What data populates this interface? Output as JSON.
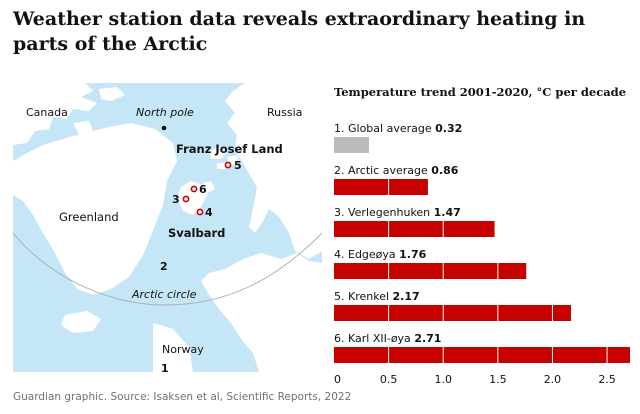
{
  "headline": "Weather station data reveals extraordinary heating in parts of the Arctic",
  "map": {
    "labels": {
      "canada": "Canada",
      "north_pole": "North pole",
      "russia": "Russia",
      "franz_josef_land": "Franz Josef Land",
      "greenland": "Greenland",
      "svalbard": "Svalbard",
      "arctic_circle": "Arctic circle",
      "norway": "Norway"
    },
    "stations": {
      "s1": "1",
      "s2": "2",
      "s3": "3",
      "s4": "4",
      "s5": "5",
      "s6": "6"
    },
    "colors": {
      "sea": "#c5e6f6",
      "land": "#ffffff",
      "station": "#c70000",
      "circle": "#aaaaaa"
    }
  },
  "chart_data": {
    "type": "bar",
    "orientation": "horizontal",
    "title": "Temperature trend 2001-2020, °C per decade",
    "categories": [
      "1. Global average",
      "2. Arctic average",
      "3. Verlegenhuken",
      "4. Edgeøya",
      "5. Krenkel",
      "6. Karl XII-øya"
    ],
    "values": [
      0.32,
      0.86,
      1.47,
      1.76,
      2.17,
      2.71
    ],
    "value_labels": [
      "0.32",
      "0.86",
      "1.47",
      "1.76",
      "2.17",
      "2.71"
    ],
    "colors": [
      "#bbbbbb",
      "#c70000",
      "#c70000",
      "#c70000",
      "#c70000",
      "#c70000"
    ],
    "xlim": [
      0,
      2.71
    ],
    "ticks": [
      0,
      0.5,
      1,
      1.5,
      2,
      2.5
    ],
    "tick_labels": [
      "0",
      "0.5",
      "1.0",
      "1.5",
      "2.0",
      "2.5"
    ],
    "gridlines": "white vertical lines inside bars at each tick",
    "xlabel": "",
    "ylabel": ""
  },
  "source": "Guardian graphic. Source: Isaksen et al, Scientific Reports, 2022"
}
